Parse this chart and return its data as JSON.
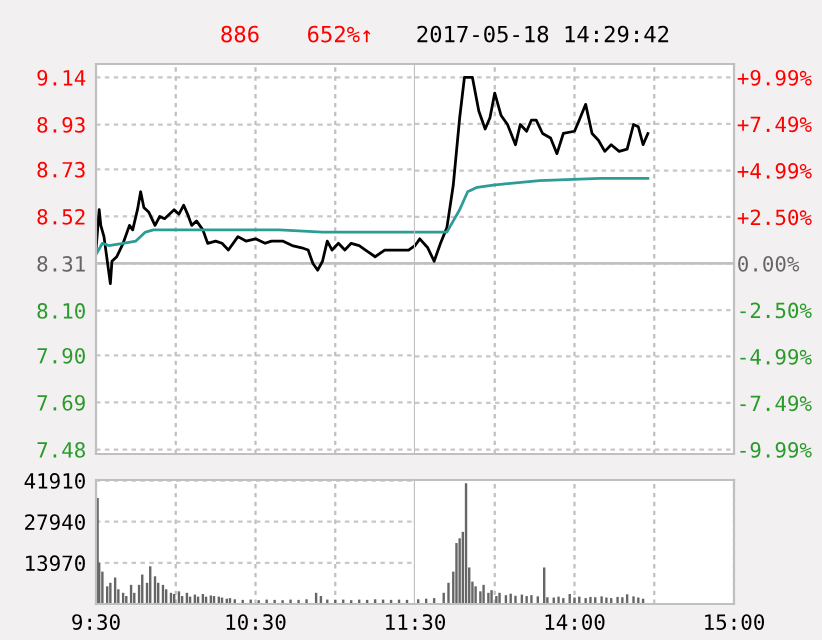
{
  "chart_data": [
    {
      "type": "line",
      "annotations": [
        "886",
        "652%↑"
      ],
      "xlim": [
        9.5,
        11.5
      ],
      "xticks": [
        {
          "value": 10,
          "label": null
        },
        {
          "value": 10.5,
          "label": null
        },
        {
          "value": 11,
          "label": null
        }
      ],
      "ylim": [
        7.46,
        9.2
      ],
      "yticks": [
        7.48,
        7.69,
        {
          "value": 7.9,
          "label": "7.90"
        },
        {
          "value": 8.1,
          "label": "8.10"
        },
        8.31,
        8.52,
        8.73,
        8.93,
        9.14
      ],
      "tick_labels": "y",
      "grid": true,
      "ref_lines": [
        {
          "axis": "y",
          "value": 8.31,
          "color": "#c0c0c0"
        }
      ],
      "series": [
        {
          "color": "#000000",
          "x": [
            9.5,
            9.52,
            9.53,
            9.55,
            9.59,
            9.6,
            9.63,
            9.67,
            9.71,
            9.73,
            9.76,
            9.78,
            9.8,
            9.83,
            9.87,
            9.9,
            9.93,
            9.96,
            9.99,
            10.02,
            10.05,
            10.08,
            10.1,
            10.13,
            10.17,
            10.2,
            10.25,
            10.29,
            10.33,
            10.39,
            10.44,
            10.5,
            10.56,
            10.6,
            10.67,
            10.73,
            10.79,
            10.83,
            10.86,
            10.89,
            10.92,
            10.95,
            10.98,
            11.02,
            11.06,
            11.1,
            11.15,
            11.19,
            11.25,
            11.31,
            11.4,
            11.46,
            11.5
          ],
          "values": [
            8.37,
            8.55,
            8.48,
            8.43,
            8.22,
            8.32,
            8.34,
            8.4,
            8.48,
            8.46,
            8.55,
            8.63,
            8.56,
            8.54,
            8.48,
            8.52,
            8.51,
            8.53,
            8.55,
            8.53,
            8.57,
            8.52,
            8.48,
            8.5,
            8.46,
            8.4,
            8.41,
            8.4,
            8.37,
            8.43,
            8.41,
            8.42,
            8.4,
            8.41,
            8.41,
            8.39,
            8.38,
            8.37,
            8.31,
            8.28,
            8.32,
            8.41,
            8.37,
            8.4,
            8.37,
            8.4,
            8.39,
            8.37,
            8.34,
            8.37,
            8.37,
            8.37,
            8.39
          ]
        },
        {
          "color": "#2e9c96",
          "x": [
            9.5,
            9.54,
            9.58,
            9.67,
            9.75,
            9.81,
            9.86,
            10.06,
            10.33,
            10.65,
            10.92,
            11.5
          ],
          "values": [
            8.35,
            8.4,
            8.39,
            8.4,
            8.41,
            8.45,
            8.46,
            8.46,
            8.46,
            8.46,
            8.45,
            8.45
          ]
        }
      ]
    },
    {
      "type": "line",
      "title": "2017-05-18 14:29:42",
      "xlim": [
        13,
        15
      ],
      "xticks": [
        {
          "value": 13.5,
          "label": null
        },
        {
          "value": 14,
          "label": null
        },
        {
          "value": 14.5,
          "label": null
        }
      ],
      "ylim": [
        7.46,
        9.2
      ],
      "y2lim": [
        -10.23,
        10.71
      ],
      "y2ticks": [
        {
          "value": -9.99,
          "label": "-9.99%"
        },
        {
          "value": -7.49,
          "label": "-7.49%"
        },
        {
          "value": -4.99,
          "label": "-4.99%"
        },
        {
          "value": -2.5,
          "label": "-2.50%"
        },
        {
          "value": 0,
          "label": "0.00%"
        },
        {
          "value": 2.5,
          "label": "+2.50%"
        },
        {
          "value": 4.99,
          "label": "+4.99%"
        },
        {
          "value": 7.49,
          "label": "+7.49%"
        },
        {
          "value": 9.99,
          "label": "+9.99%"
        }
      ],
      "tick_labels": "y",
      "grid": true,
      "ref_lines": [
        {
          "axis": "y",
          "value": 8.31,
          "color": "#c0c0c0"
        }
      ],
      "series": [
        {
          "color": "#000000",
          "x": [
            13.0,
            13.03,
            13.08,
            13.12,
            13.16,
            13.2,
            13.24,
            13.28,
            13.31,
            13.36,
            13.4,
            13.44,
            13.47,
            13.5,
            13.54,
            13.58,
            13.63,
            13.66,
            13.7,
            13.73,
            13.76,
            13.8,
            13.85,
            13.89,
            13.93,
            14.0,
            14.03,
            14.07,
            14.11,
            14.15,
            14.19,
            14.23,
            14.28,
            14.33,
            14.37,
            14.4,
            14.43,
            14.46
          ],
          "values": [
            8.39,
            8.42,
            8.38,
            8.32,
            8.4,
            8.47,
            8.66,
            8.96,
            9.14,
            9.14,
            8.99,
            8.91,
            8.96,
            9.07,
            8.97,
            8.93,
            8.84,
            8.93,
            8.9,
            8.95,
            8.95,
            8.89,
            8.87,
            8.8,
            8.89,
            8.9,
            8.95,
            9.02,
            8.89,
            8.86,
            8.81,
            8.84,
            8.81,
            8.82,
            8.93,
            8.92,
            8.84,
            8.89
          ]
        },
        {
          "color": "#2e9c96",
          "x": [
            13.0,
            13.15,
            13.2,
            13.24,
            13.28,
            13.33,
            13.39,
            13.49,
            13.78,
            14.16,
            14.46
          ],
          "values": [
            8.45,
            8.45,
            8.45,
            8.5,
            8.55,
            8.63,
            8.65,
            8.66,
            8.68,
            8.69,
            8.69
          ]
        }
      ]
    },
    {
      "type": "bar",
      "xlim": [
        9.5,
        11.5
      ],
      "xticks": [
        {
          "value": 9.5,
          "label": "9:30"
        },
        {
          "value": 10,
          "label": null
        },
        {
          "value": 10.5,
          "label": "10:30"
        },
        {
          "value": 11,
          "label": null
        },
        {
          "value": 11.5,
          "label": "11:30"
        }
      ],
      "ylim": [
        0,
        42100
      ],
      "yticks": [
        13970,
        27940,
        41910
      ],
      "grid": true,
      "color": "#666666",
      "x": [
        9.51,
        9.52,
        9.54,
        9.57,
        9.59,
        9.62,
        9.64,
        9.67,
        9.69,
        9.72,
        9.74,
        9.77,
        9.79,
        9.82,
        9.84,
        9.87,
        9.89,
        9.92,
        9.94,
        9.97,
        9.99,
        10.02,
        10.04,
        10.07,
        10.09,
        10.12,
        10.14,
        10.17,
        10.19,
        10.22,
        10.24,
        10.27,
        10.29,
        10.32,
        10.34,
        10.37,
        10.42,
        10.47,
        10.52,
        10.57,
        10.62,
        10.67,
        10.72,
        10.77,
        10.82,
        10.88,
        10.91,
        10.95,
        11.0,
        11.05,
        11.1,
        11.15,
        11.2,
        11.25,
        11.3,
        11.35,
        11.4,
        11.45
      ],
      "values": [
        36000,
        14000,
        11000,
        6000,
        7200,
        9000,
        5000,
        3800,
        2700,
        6500,
        3800,
        6500,
        10000,
        7200,
        12800,
        9400,
        7200,
        6500,
        5000,
        3800,
        3400,
        4300,
        2700,
        3800,
        2500,
        3200,
        2500,
        3400,
        2500,
        2900,
        2700,
        2500,
        2200,
        1800,
        2000,
        1600,
        1400,
        1500,
        1300,
        1500,
        1400,
        1300,
        1500,
        1400,
        1600,
        3800,
        2700,
        1500,
        1400,
        1500,
        1300,
        1500,
        1400,
        1600,
        1500,
        1400,
        1500,
        1400
      ]
    },
    {
      "type": "bar",
      "xlim": [
        13,
        15
      ],
      "xticks": [
        {
          "value": 13.5,
          "label": null
        },
        {
          "value": 14,
          "label": "14:00"
        },
        {
          "value": 14.5,
          "label": null
        },
        {
          "value": 15,
          "label": "15:00"
        }
      ],
      "ylim": [
        0,
        42100
      ],
      "tick_labels": "x",
      "grid": true,
      "color": "#666666",
      "x": [
        13.02,
        13.07,
        13.12,
        13.18,
        13.21,
        13.24,
        13.26,
        13.28,
        13.3,
        13.32,
        13.34,
        13.36,
        13.38,
        13.41,
        13.43,
        13.46,
        13.48,
        13.51,
        13.53,
        13.57,
        13.6,
        13.63,
        13.67,
        13.7,
        13.73,
        13.77,
        13.81,
        13.83,
        13.87,
        13.9,
        13.93,
        13.97,
        14.0,
        14.03,
        14.07,
        14.1,
        14.13,
        14.17,
        14.2,
        14.23,
        14.27,
        14.3,
        14.33,
        14.37,
        14.4,
        14.43
      ],
      "values": [
        1600,
        1800,
        2000,
        3800,
        7200,
        11000,
        20700,
        22300,
        24500,
        41000,
        12400,
        7600,
        6000,
        4300,
        6500,
        3800,
        4700,
        2700,
        3800,
        3000,
        3500,
        2800,
        3200,
        2700,
        3000,
        2600,
        12400,
        2300,
        2200,
        2500,
        2000,
        3400,
        2200,
        2500,
        2000,
        2400,
        2300,
        2600,
        2200,
        2000,
        2400,
        2300,
        3300,
        2600,
        2200,
        1800
      ]
    }
  ]
}
